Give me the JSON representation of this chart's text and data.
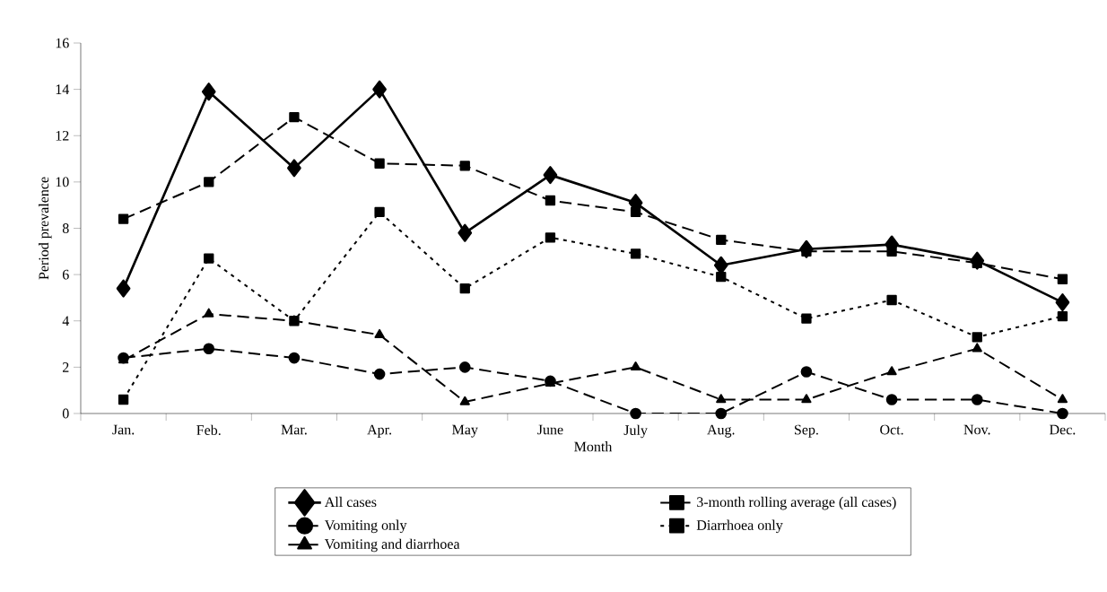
{
  "chart_data": {
    "type": "line",
    "xlabel": "Month",
    "ylabel": "Period prevalence",
    "categories": [
      "Jan.",
      "Feb.",
      "Mar.",
      "Apr.",
      "May",
      "June",
      "July",
      "Aug.",
      "Sep.",
      "Oct.",
      "Nov.",
      "Dec."
    ],
    "ylim": [
      0,
      16
    ],
    "yticks": [
      0,
      2,
      4,
      6,
      8,
      10,
      12,
      14,
      16
    ],
    "grid": false,
    "legend": "bottom",
    "series": [
      {
        "name": "All cases",
        "color": "#000000",
        "marker": "diamond",
        "line_style": "solid",
        "values": [
          5.4,
          13.9,
          10.6,
          14.0,
          7.8,
          10.3,
          9.1,
          6.4,
          7.1,
          7.3,
          6.6,
          4.8
        ]
      },
      {
        "name": "3-month rolling average (all cases)",
        "color": "#000000",
        "marker": "square",
        "line_style": "dashed",
        "values": [
          8.4,
          10.0,
          12.8,
          10.8,
          10.7,
          9.2,
          8.7,
          7.5,
          7.0,
          7.0,
          6.5,
          5.8
        ]
      },
      {
        "name": "Vomiting only",
        "color": "#000000",
        "marker": "circle",
        "line_style": "dashed",
        "values": [
          2.4,
          2.8,
          2.4,
          1.7,
          2.0,
          1.4,
          0.0,
          0.0,
          1.8,
          0.6,
          0.6,
          0.0
        ]
      },
      {
        "name": "Diarrhoea only",
        "color": "#000000",
        "marker": "square",
        "line_style": "dotted",
        "values": [
          0.6,
          6.7,
          4.0,
          8.7,
          5.4,
          7.6,
          6.9,
          5.9,
          4.1,
          4.9,
          3.3,
          4.2
        ]
      },
      {
        "name": "Vomiting and diarrhoea",
        "color": "#000000",
        "marker": "triangle",
        "line_style": "dashed",
        "values": [
          2.3,
          4.3,
          4.0,
          3.4,
          0.5,
          1.3,
          2.0,
          0.6,
          0.6,
          1.8,
          2.8,
          0.6
        ]
      }
    ]
  }
}
